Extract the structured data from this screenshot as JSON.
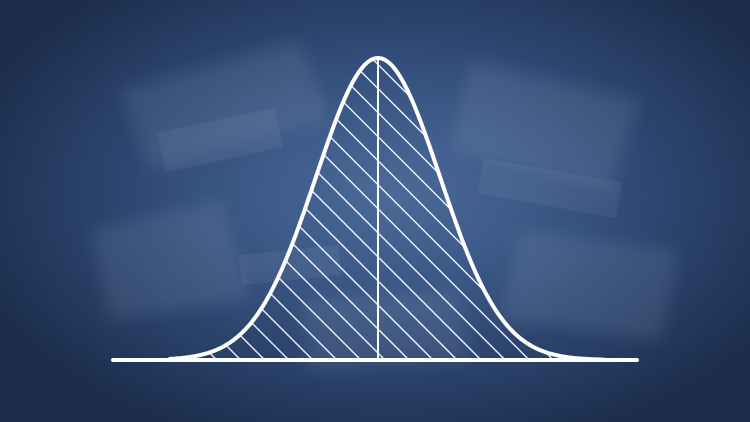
{
  "diagram": {
    "kind": "normal-distribution-bell-curve",
    "fill_pattern": "diagonal-hatching",
    "center_line": true,
    "colors": {
      "background_center": "#4a6a9a",
      "background_edge": "#1d2e4d",
      "stroke": "#ffffff"
    }
  }
}
